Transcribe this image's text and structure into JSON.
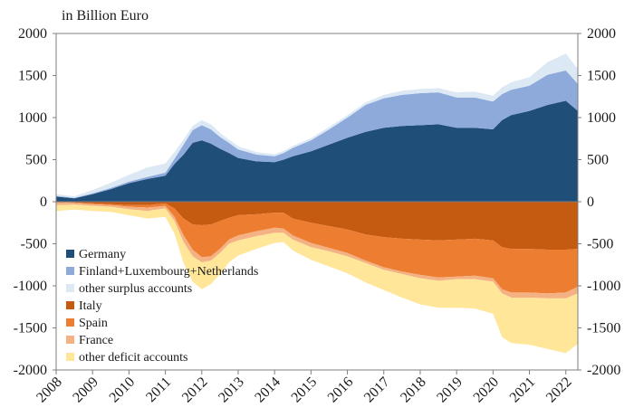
{
  "chart_data": {
    "type": "area",
    "title": "",
    "unit_label": "in Billion Euro",
    "xlabel": "",
    "ylabel": "",
    "x_start": 2008,
    "x_end": 2022.33,
    "ylim": [
      -2000,
      2000
    ],
    "y_ticks": [
      2000,
      1500,
      1000,
      500,
      0,
      -500,
      -1000,
      -1500,
      -2000
    ],
    "x_ticks": [
      "2008",
      "2009",
      "2010",
      "2011",
      "2012",
      "2013",
      "2014",
      "2015",
      "2016",
      "2017",
      "2018",
      "2019",
      "2020",
      "2021",
      "2022"
    ],
    "grid": false,
    "legend": [
      {
        "name": "Germany",
        "color": "#1f4e79"
      },
      {
        "name": "Finland+Luxembourg+Netherlands",
        "color": "#8eaadb"
      },
      {
        "name": "other surplus accounts",
        "color": "#dce9f5"
      },
      {
        "name": "Italy",
        "color": "#c55a11"
      },
      {
        "name": "Spain",
        "color": "#ed7d31"
      },
      {
        "name": "France",
        "color": "#f4b183"
      },
      {
        "name": "other deficit accounts",
        "color": "#ffe699"
      }
    ],
    "x": [
      2008,
      2008.5,
      2009,
      2009.5,
      2010,
      2010.5,
      2011,
      2011.25,
      2011.5,
      2011.75,
      2012,
      2012.25,
      2012.5,
      2012.75,
      2013,
      2013.5,
      2014,
      2014.25,
      2014.5,
      2015,
      2015.5,
      2016,
      2016.5,
      2017,
      2017.5,
      2018,
      2018.5,
      2019,
      2019.5,
      2020,
      2020.25,
      2020.5,
      2021,
      2021.5,
      2022,
      2022.33
    ],
    "series": [
      {
        "name": "Germany",
        "side": "surplus",
        "values": [
          60,
          40,
          90,
          150,
          220,
          270,
          310,
          450,
          560,
          700,
          730,
          690,
          630,
          580,
          520,
          480,
          470,
          500,
          540,
          600,
          680,
          760,
          830,
          880,
          900,
          910,
          920,
          880,
          880,
          860,
          970,
          1030,
          1080,
          1150,
          1200,
          1080
        ]
      },
      {
        "name": "Finland+Luxembourg+Netherlands",
        "side": "surplus",
        "values": [
          10,
          5,
          10,
          15,
          20,
          25,
          35,
          60,
          120,
          150,
          180,
          170,
          140,
          120,
          100,
          80,
          70,
          80,
          100,
          130,
          180,
          240,
          320,
          350,
          370,
          380,
          380,
          360,
          360,
          330,
          310,
          300,
          300,
          360,
          360,
          320
        ]
      },
      {
        "name": "other surplus accounts",
        "side": "surplus",
        "values": [
          20,
          20,
          40,
          60,
          80,
          110,
          110,
          80,
          60,
          50,
          60,
          60,
          50,
          40,
          40,
          30,
          25,
          25,
          25,
          25,
          30,
          30,
          30,
          40,
          50,
          50,
          50,
          60,
          70,
          70,
          80,
          90,
          100,
          150,
          200,
          180
        ]
      },
      {
        "name": "Italy",
        "side": "deficit",
        "values": [
          5,
          10,
          20,
          30,
          40,
          40,
          20,
          80,
          200,
          270,
          280,
          270,
          230,
          190,
          160,
          150,
          130,
          130,
          200,
          250,
          290,
          330,
          390,
          420,
          440,
          450,
          460,
          450,
          440,
          460,
          540,
          560,
          560,
          570,
          570,
          560
        ]
      },
      {
        "name": "Spain",
        "side": "deficit",
        "values": [
          5,
          5,
          10,
          10,
          20,
          30,
          30,
          100,
          200,
          300,
          380,
          380,
          330,
          260,
          240,
          200,
          180,
          190,
          200,
          240,
          260,
          280,
          310,
          360,
          390,
          420,
          440,
          440,
          440,
          450,
          500,
          520,
          520,
          520,
          510,
          450
        ]
      },
      {
        "name": "France",
        "side": "deficit",
        "values": [
          30,
          20,
          20,
          20,
          30,
          40,
          30,
          50,
          80,
          80,
          60,
          50,
          50,
          50,
          60,
          60,
          60,
          50,
          50,
          50,
          40,
          40,
          30,
          30,
          30,
          40,
          40,
          30,
          40,
          40,
          50,
          60,
          60,
          60,
          70,
          80
        ]
      },
      {
        "name": "other deficit accounts",
        "side": "deficit",
        "values": [
          70,
          60,
          60,
          60,
          70,
          90,
          100,
          150,
          250,
          300,
          320,
          280,
          250,
          220,
          180,
          150,
          120,
          110,
          130,
          150,
          180,
          200,
          230,
          240,
          280,
          310,
          320,
          340,
          350,
          380,
          520,
          540,
          560,
          600,
          650,
          600
        ]
      }
    ]
  }
}
